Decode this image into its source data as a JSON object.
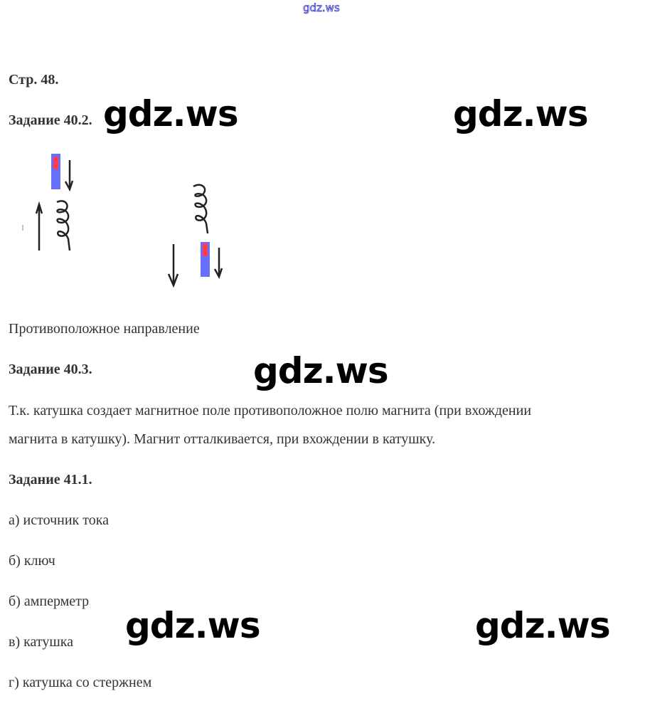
{
  "header": {
    "site_link": "gdz.ws"
  },
  "watermark": "gdz.ws",
  "content": {
    "page": "Стр. 48.",
    "task1_title": "Задание 40.2.",
    "task1_answer": "Противоположное направление",
    "task2_title": "Задание 40.3.",
    "task2_line1": "Т.к. катушка создает магнитное поле противоположное полю магнита (при вхождении",
    "task2_line2": "магнита в катушку). Магнит отталкивается, при вхождении в катушку.",
    "task3_title": "Задание 41.1.",
    "items": [
      "а) источник тока",
      "б) ключ",
      "б) амперметр",
      "в) катушка",
      "г) катушка со стержнем"
    ]
  },
  "colors": {
    "magnet_north": "#ff3b4e",
    "magnet_south": "#6670ff",
    "link": "#3333cc"
  }
}
